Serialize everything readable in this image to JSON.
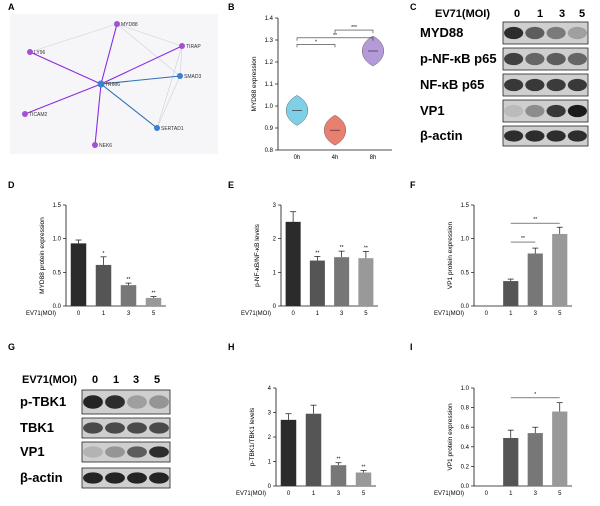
{
  "panel_letters": [
    "A",
    "B",
    "C",
    "D",
    "E",
    "F",
    "G",
    "H",
    "I"
  ],
  "network": {
    "center": "TRIM6",
    "nodes": [
      "MYD88",
      "TIRAP",
      "SMAD3",
      "SERTAD1",
      "NEK6",
      "TICAM2",
      "LY96"
    ]
  },
  "blots": {
    "c": {
      "header_label": "EV71(MOI)",
      "doses": [
        "0",
        "1",
        "3",
        "5"
      ],
      "bands": [
        "MYD88",
        "p-NF-κB p65",
        "NF-κB p65",
        "VP1",
        "β-actin"
      ]
    },
    "g": {
      "header_label": "EV71(MOI)",
      "doses": [
        "0",
        "1",
        "3",
        "5"
      ],
      "bands": [
        "p-TBK1",
        "TBK1",
        "VP1",
        "β-actin"
      ]
    }
  },
  "chart_data": [
    {
      "panel": "B",
      "type": "violin",
      "categories": [
        "0h",
        "4h",
        "8h"
      ],
      "values": [
        0.98,
        0.89,
        1.25
      ],
      "ylabel": "MYD88 expression",
      "ylim": [
        0.8,
        1.4
      ],
      "yticks": [
        0.8,
        0.9,
        1.0,
        1.1,
        1.2,
        1.3,
        1.4
      ],
      "colors": [
        "#7fd0e6",
        "#e87f6f",
        "#b49ad8"
      ],
      "significance": [
        "*",
        "**",
        "***"
      ]
    },
    {
      "panel": "D",
      "type": "bar",
      "xlabel": "EV71(MOI)",
      "categories": [
        "0",
        "1",
        "3",
        "5"
      ],
      "values": [
        0.93,
        0.61,
        0.31,
        0.12
      ],
      "errors": [
        0.05,
        0.12,
        0.03,
        0.02
      ],
      "ylabel": "MYD88 protein expression",
      "ylim": [
        0,
        1.5
      ],
      "yticks": [
        0.0,
        0.5,
        1.0,
        1.5
      ],
      "significance": [
        "",
        "*",
        "**",
        "**"
      ]
    },
    {
      "panel": "E",
      "type": "bar",
      "xlabel": "EV71(MOI)",
      "categories": [
        "0",
        "1",
        "3",
        "5"
      ],
      "values": [
        2.5,
        1.35,
        1.45,
        1.42
      ],
      "errors": [
        0.3,
        0.12,
        0.18,
        0.2
      ],
      "ylabel": "p-NF-κB/NF-κB levels",
      "ylim": [
        0,
        3
      ],
      "yticks": [
        0,
        1,
        2,
        3
      ],
      "significance": [
        "",
        "**",
        "**",
        "**"
      ]
    },
    {
      "panel": "F",
      "type": "bar",
      "xlabel": "EV71(MOI)",
      "categories": [
        "0",
        "1",
        "3",
        "5"
      ],
      "values": [
        0,
        0.37,
        0.78,
        1.07
      ],
      "errors": [
        0,
        0.03,
        0.08,
        0.1
      ],
      "ylabel": "VP1 protein expression",
      "ylim": [
        0,
        1.5
      ],
      "yticks": [
        0.0,
        0.5,
        1.0,
        1.5
      ],
      "brackets": [
        {
          "from": 1,
          "to": 2,
          "label": "**"
        },
        {
          "from": 1,
          "to": 3,
          "label": "**"
        }
      ]
    },
    {
      "panel": "H",
      "type": "bar",
      "xlabel": "EV71(MOI)",
      "categories": [
        "0",
        "1",
        "3",
        "5"
      ],
      "values": [
        2.7,
        2.95,
        0.85,
        0.55
      ],
      "errors": [
        0.25,
        0.35,
        0.1,
        0.08
      ],
      "ylabel": "p-TBK1/TBK1 levels",
      "ylim": [
        0,
        4
      ],
      "yticks": [
        0,
        1,
        2,
        3,
        4
      ],
      "significance": [
        "",
        "",
        "**",
        "**"
      ]
    },
    {
      "panel": "I",
      "type": "bar",
      "xlabel": "EV71(MOI)",
      "categories": [
        "0",
        "1",
        "3",
        "5"
      ],
      "values": [
        0,
        0.49,
        0.54,
        0.76
      ],
      "errors": [
        0,
        0.08,
        0.06,
        0.09
      ],
      "ylabel": "VP1 protein expression",
      "ylim": [
        0,
        1.0
      ],
      "yticks": [
        0.0,
        0.2,
        0.4,
        0.6,
        0.8,
        1.0
      ],
      "brackets": [
        {
          "from": 1,
          "to": 3,
          "label": "*"
        }
      ]
    }
  ],
  "colors": {
    "bar_palette": [
      "#2b2b2b",
      "#555555",
      "#777777",
      "#999999"
    ],
    "net_edge_purple": "#8a2be2",
    "net_edge_blue": "#2c6fb5",
    "net_node_purple": "#a44fd4",
    "net_node_blue": "#3b7fd0"
  }
}
